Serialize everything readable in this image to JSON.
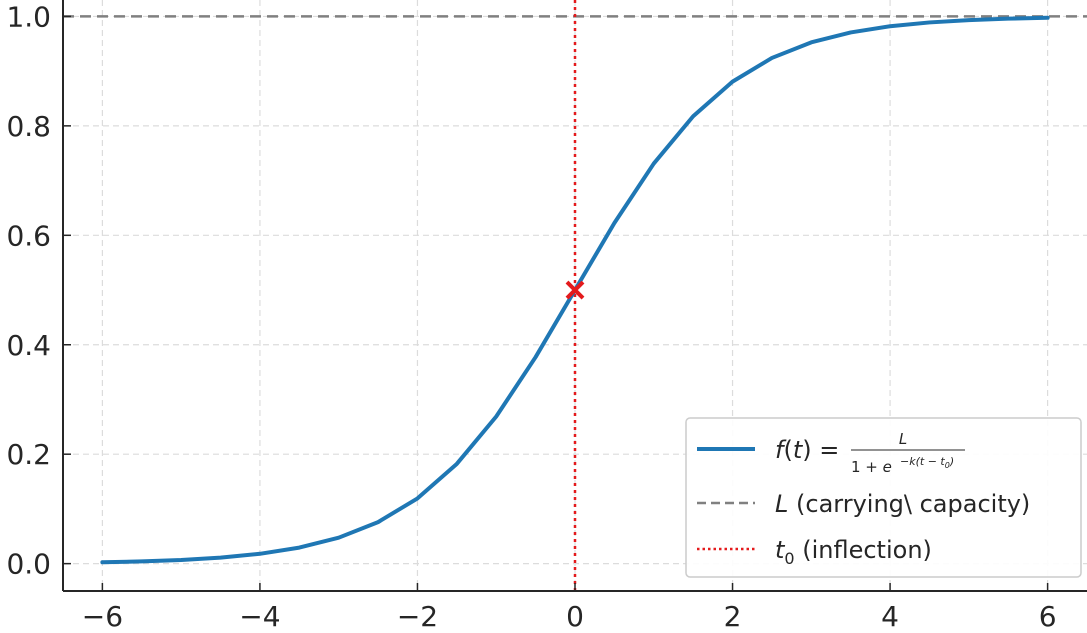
{
  "chart_data": {
    "type": "line",
    "title": "",
    "xlabel": "",
    "ylabel": "",
    "xlim": [
      -6.5,
      6.5
    ],
    "ylim": [
      -0.05,
      1.03
    ],
    "xticks": [
      -6,
      -4,
      -2,
      0,
      2,
      4,
      6
    ],
    "yticks": [
      0.0,
      0.2,
      0.4,
      0.6,
      0.8,
      1.0
    ],
    "xtick_labels": [
      "−6",
      "−4",
      "−2",
      "0",
      "2",
      "4",
      "6"
    ],
    "ytick_labels": [
      "0.0",
      "0.2",
      "0.4",
      "0.6",
      "0.8",
      "1.0"
    ],
    "grid": true,
    "legend_position": "bottom-right",
    "series": [
      {
        "name": "f(t) = L / (1 + e^{-k(t - t0)})",
        "color": "#1f77b4",
        "style": "solid",
        "x": [
          -6.0,
          -5.5,
          -5.0,
          -4.5,
          -4.0,
          -3.5,
          -3.0,
          -2.5,
          -2.0,
          -1.5,
          -1.0,
          -0.5,
          0.0,
          0.5,
          1.0,
          1.5,
          2.0,
          2.5,
          3.0,
          3.5,
          4.0,
          4.5,
          5.0,
          5.5,
          6.0
        ],
        "y": [
          0.0025,
          0.0041,
          0.0067,
          0.011,
          0.018,
          0.0293,
          0.0474,
          0.0759,
          0.1192,
          0.1824,
          0.2689,
          0.3775,
          0.5,
          0.6225,
          0.7311,
          0.8176,
          0.8808,
          0.9241,
          0.9526,
          0.9707,
          0.982,
          0.989,
          0.9933,
          0.9959,
          0.9975
        ]
      }
    ],
    "reference_lines": [
      {
        "name": "L (carrying\\ capacity)",
        "orientation": "horizontal",
        "value": 1.0,
        "color": "#808080",
        "style": "dashed"
      },
      {
        "name": "t0 (inflection)",
        "orientation": "vertical",
        "value": 0.0,
        "color": "#e41a1c",
        "style": "dotted"
      }
    ],
    "markers": [
      {
        "name": "inflection-point",
        "x": 0.0,
        "y": 0.5,
        "shape": "x",
        "color": "#e41a1c"
      }
    ],
    "legend": {
      "entry1": {
        "f": "f",
        "t_open": "(",
        "t": "t",
        "t_close": ")",
        "eq": " = ",
        "numer": "L",
        "denom_pre": "1 + ",
        "e": "e",
        "exp": "−k(t − t",
        "exp_sub": "0",
        "exp_close": ")"
      },
      "entry2": {
        "sym": "L",
        "text": " (carrying\\ capacity)"
      },
      "entry3": {
        "sym": "t",
        "sub": "0",
        "text": " (inflection)"
      }
    }
  }
}
